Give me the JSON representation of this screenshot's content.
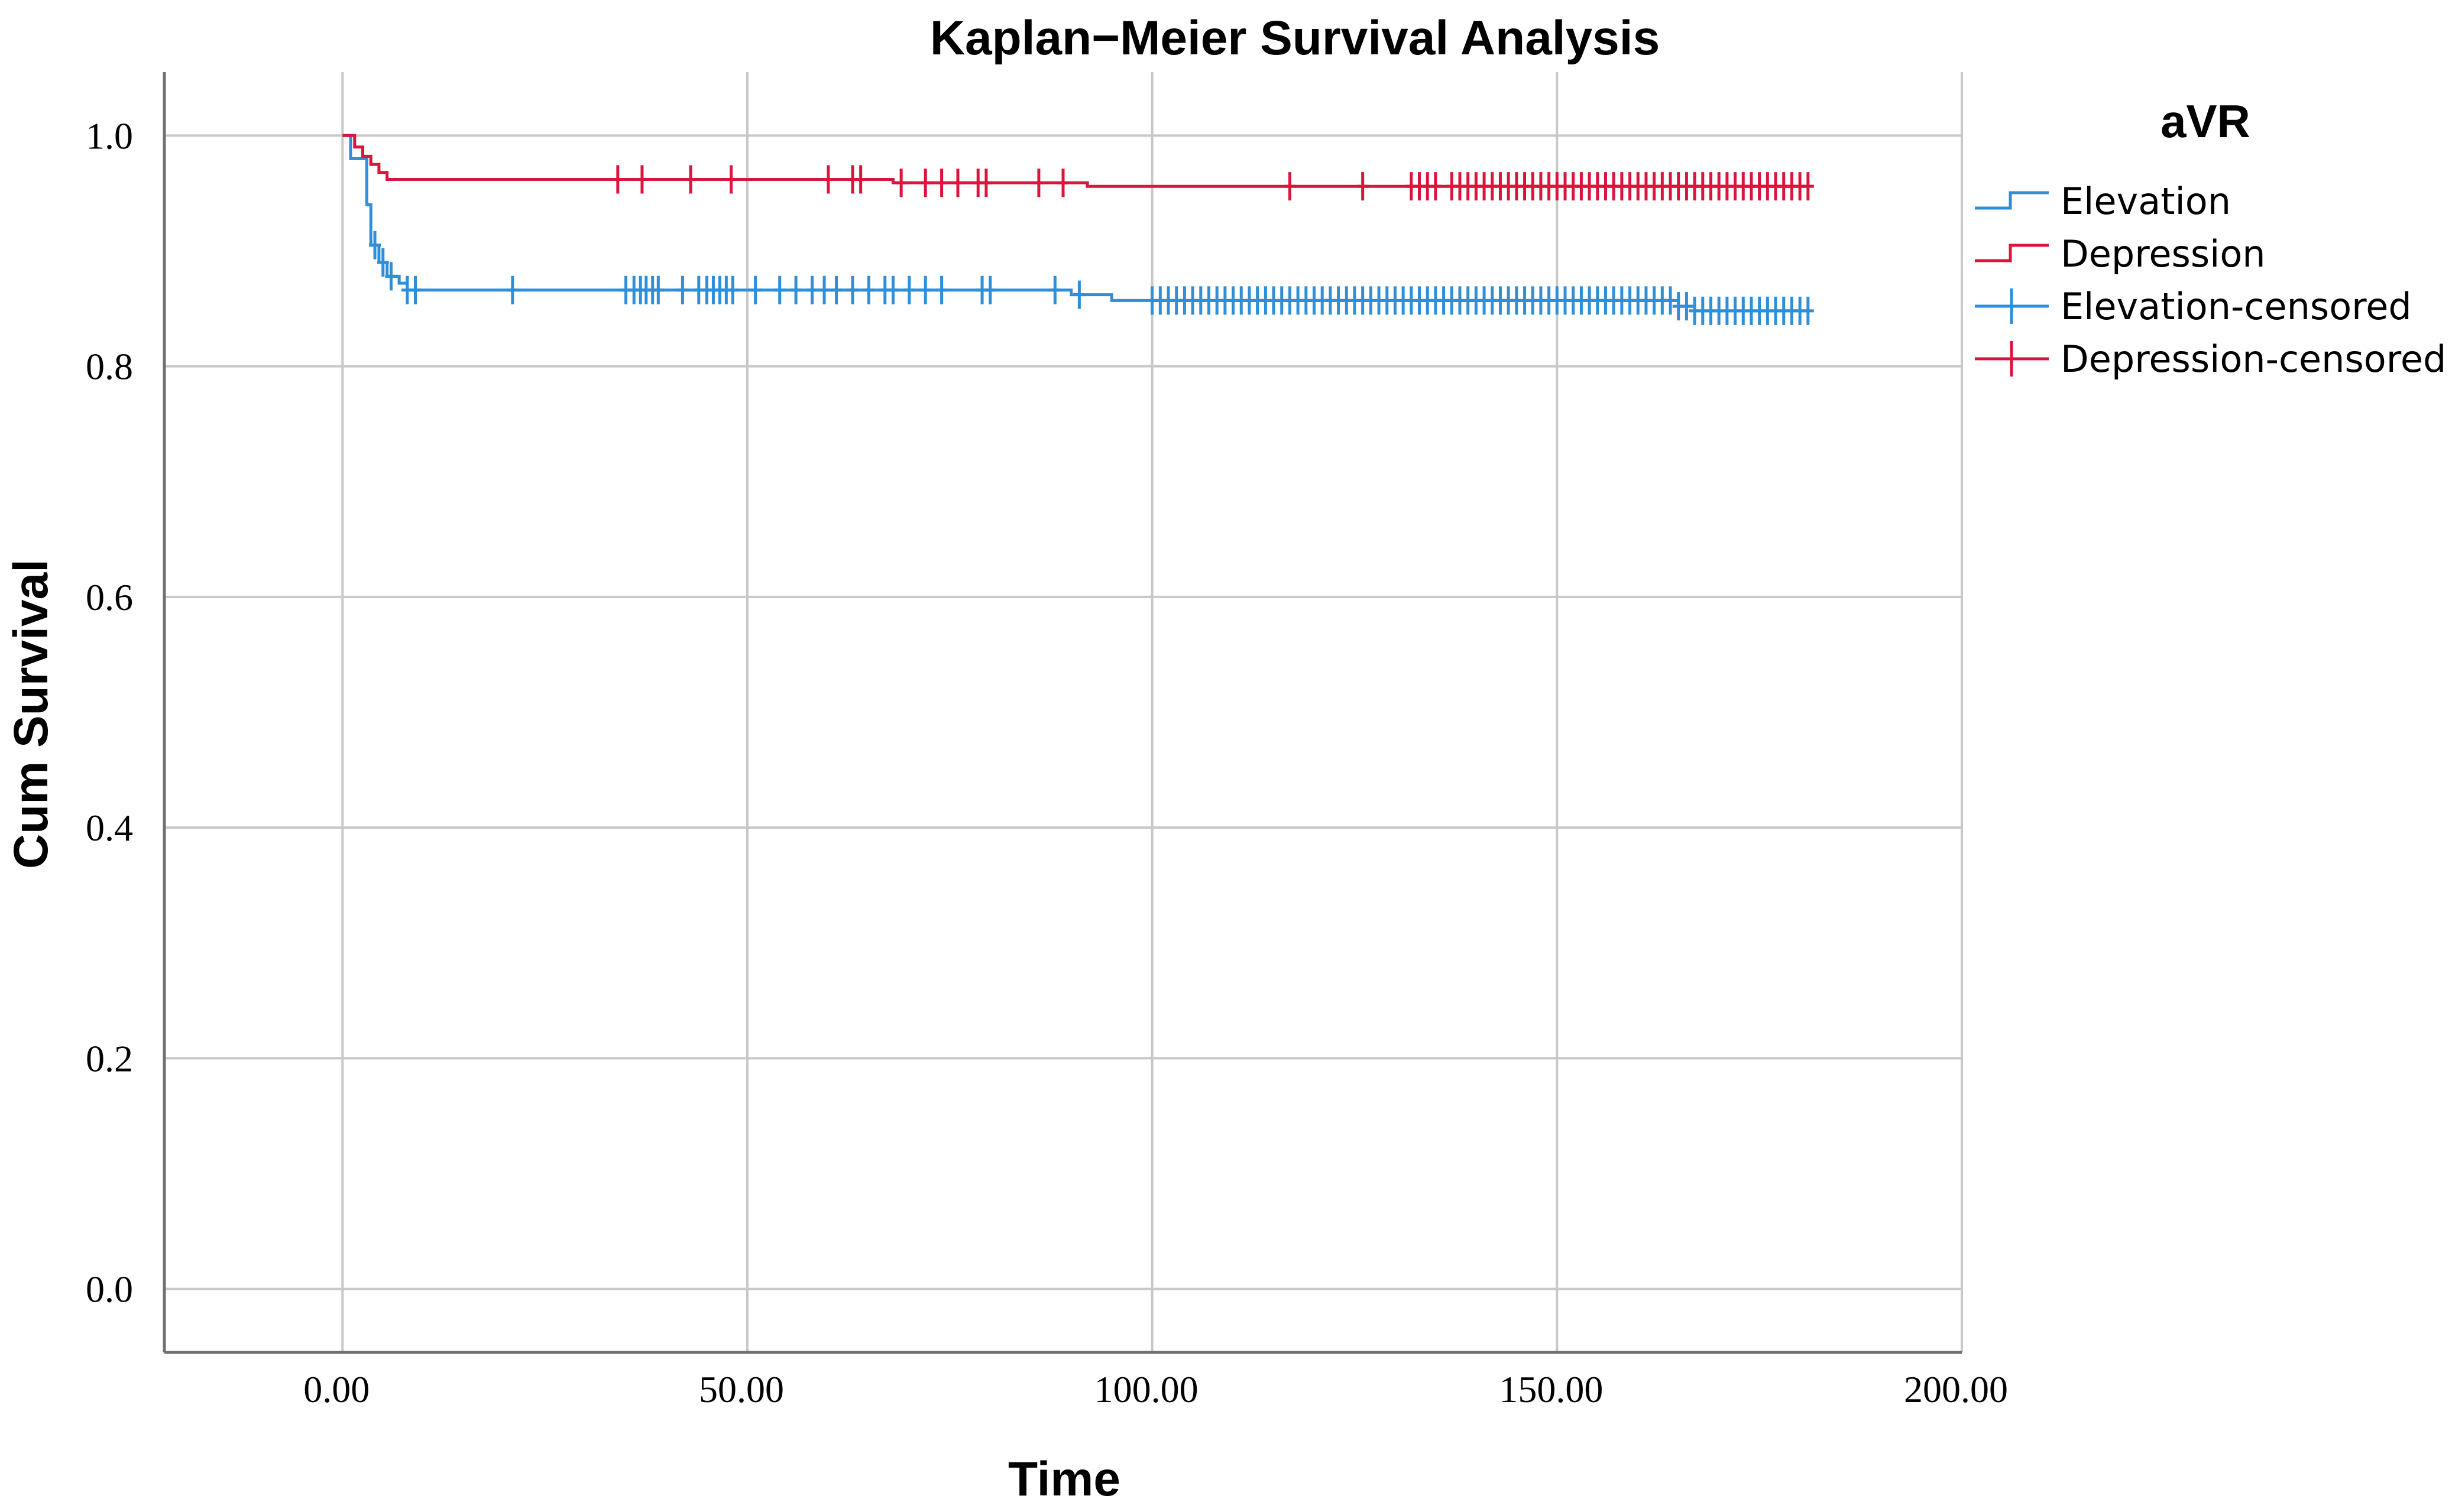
{
  "chart_data": {
    "type": "line",
    "subtype": "kaplan-meier",
    "title": "Kaplan−Meier Survival Analysis",
    "xlabel": "Time",
    "ylabel": "Cum Survival",
    "xlim": [
      -22,
      200
    ],
    "ylim": [
      -0.055,
      1.055
    ],
    "x_ticks": [
      0,
      50,
      100,
      150,
      200
    ],
    "x_tick_labels": [
      "0.00",
      "50.00",
      "100.00",
      "150.00",
      "200.00"
    ],
    "y_ticks": [
      0.0,
      0.2,
      0.4,
      0.6,
      0.8,
      1.0
    ],
    "y_tick_labels": [
      "0.0",
      "0.2",
      "0.4",
      "0.6",
      "0.8",
      "1.0"
    ],
    "grid": true,
    "legend": {
      "title": "aVR",
      "position": "right",
      "entries": [
        "Elevation",
        "Depression",
        "Elevation-censored",
        "Depression-censored"
      ]
    },
    "colors": {
      "elevation": "#2e8fd8",
      "depression": "#dc143c",
      "grid": "#c8c8c8",
      "axis": "#707070"
    },
    "series": [
      {
        "name": "Elevation",
        "color": "#2e8fd8",
        "steps": [
          [
            0,
            1.0
          ],
          [
            1,
            0.98
          ],
          [
            3,
            0.94
          ],
          [
            3.5,
            0.905
          ],
          [
            4.5,
            0.89
          ],
          [
            5.5,
            0.878
          ],
          [
            7,
            0.872
          ],
          [
            8,
            0.866
          ],
          [
            90,
            0.862
          ],
          [
            95,
            0.857
          ],
          [
            165,
            0.852
          ],
          [
            167,
            0.848
          ],
          [
            181,
            0.848
          ]
        ],
        "censored": [
          4,
          5,
          6,
          8,
          9,
          21,
          35,
          36,
          36.8,
          37.5,
          38.3,
          39,
          42,
          44,
          45,
          45.8,
          46.6,
          47.4,
          48.2,
          51,
          54,
          56,
          58,
          59.5,
          61,
          63,
          65,
          67,
          68,
          70,
          72,
          74,
          79,
          80,
          88,
          91,
          100,
          101,
          102,
          103,
          104,
          105,
          106,
          107,
          108,
          109,
          110,
          111,
          112,
          113,
          114,
          115,
          116,
          117,
          118,
          119,
          120,
          121,
          122,
          123,
          124,
          125,
          126,
          127,
          128,
          129,
          130,
          131,
          132,
          133,
          134,
          135,
          136,
          137,
          138,
          139,
          140,
          141,
          142,
          143,
          144,
          145,
          146,
          147,
          148,
          149,
          150,
          151,
          152,
          153,
          154,
          155,
          156,
          157,
          158,
          159,
          160,
          161,
          162,
          163,
          164,
          165,
          166,
          167,
          168,
          169,
          170,
          171,
          172,
          173,
          174,
          175,
          176,
          177,
          178,
          179,
          180,
          181
        ]
      },
      {
        "name": "Depression",
        "color": "#dc143c",
        "steps": [
          [
            0,
            1.0
          ],
          [
            1.5,
            0.99
          ],
          [
            2.5,
            0.982
          ],
          [
            3.5,
            0.975
          ],
          [
            4.5,
            0.968
          ],
          [
            5.5,
            0.962
          ],
          [
            68,
            0.959
          ],
          [
            92,
            0.956
          ],
          [
            181,
            0.956
          ]
        ],
        "censored": [
          34,
          37,
          43,
          48,
          60,
          63,
          64,
          69,
          72,
          74,
          76,
          78.5,
          79.5,
          86,
          89,
          117,
          126,
          132,
          133,
          134,
          135,
          137,
          138,
          139,
          140,
          141,
          142,
          143,
          144,
          145,
          146,
          147,
          148,
          149,
          150,
          151,
          152,
          153,
          154,
          155,
          156,
          157,
          158,
          159,
          160,
          161,
          162,
          163,
          164,
          165,
          166,
          167,
          168,
          169,
          170,
          171,
          172,
          173,
          174,
          175,
          176,
          177,
          178,
          179,
          180,
          181
        ]
      }
    ]
  }
}
